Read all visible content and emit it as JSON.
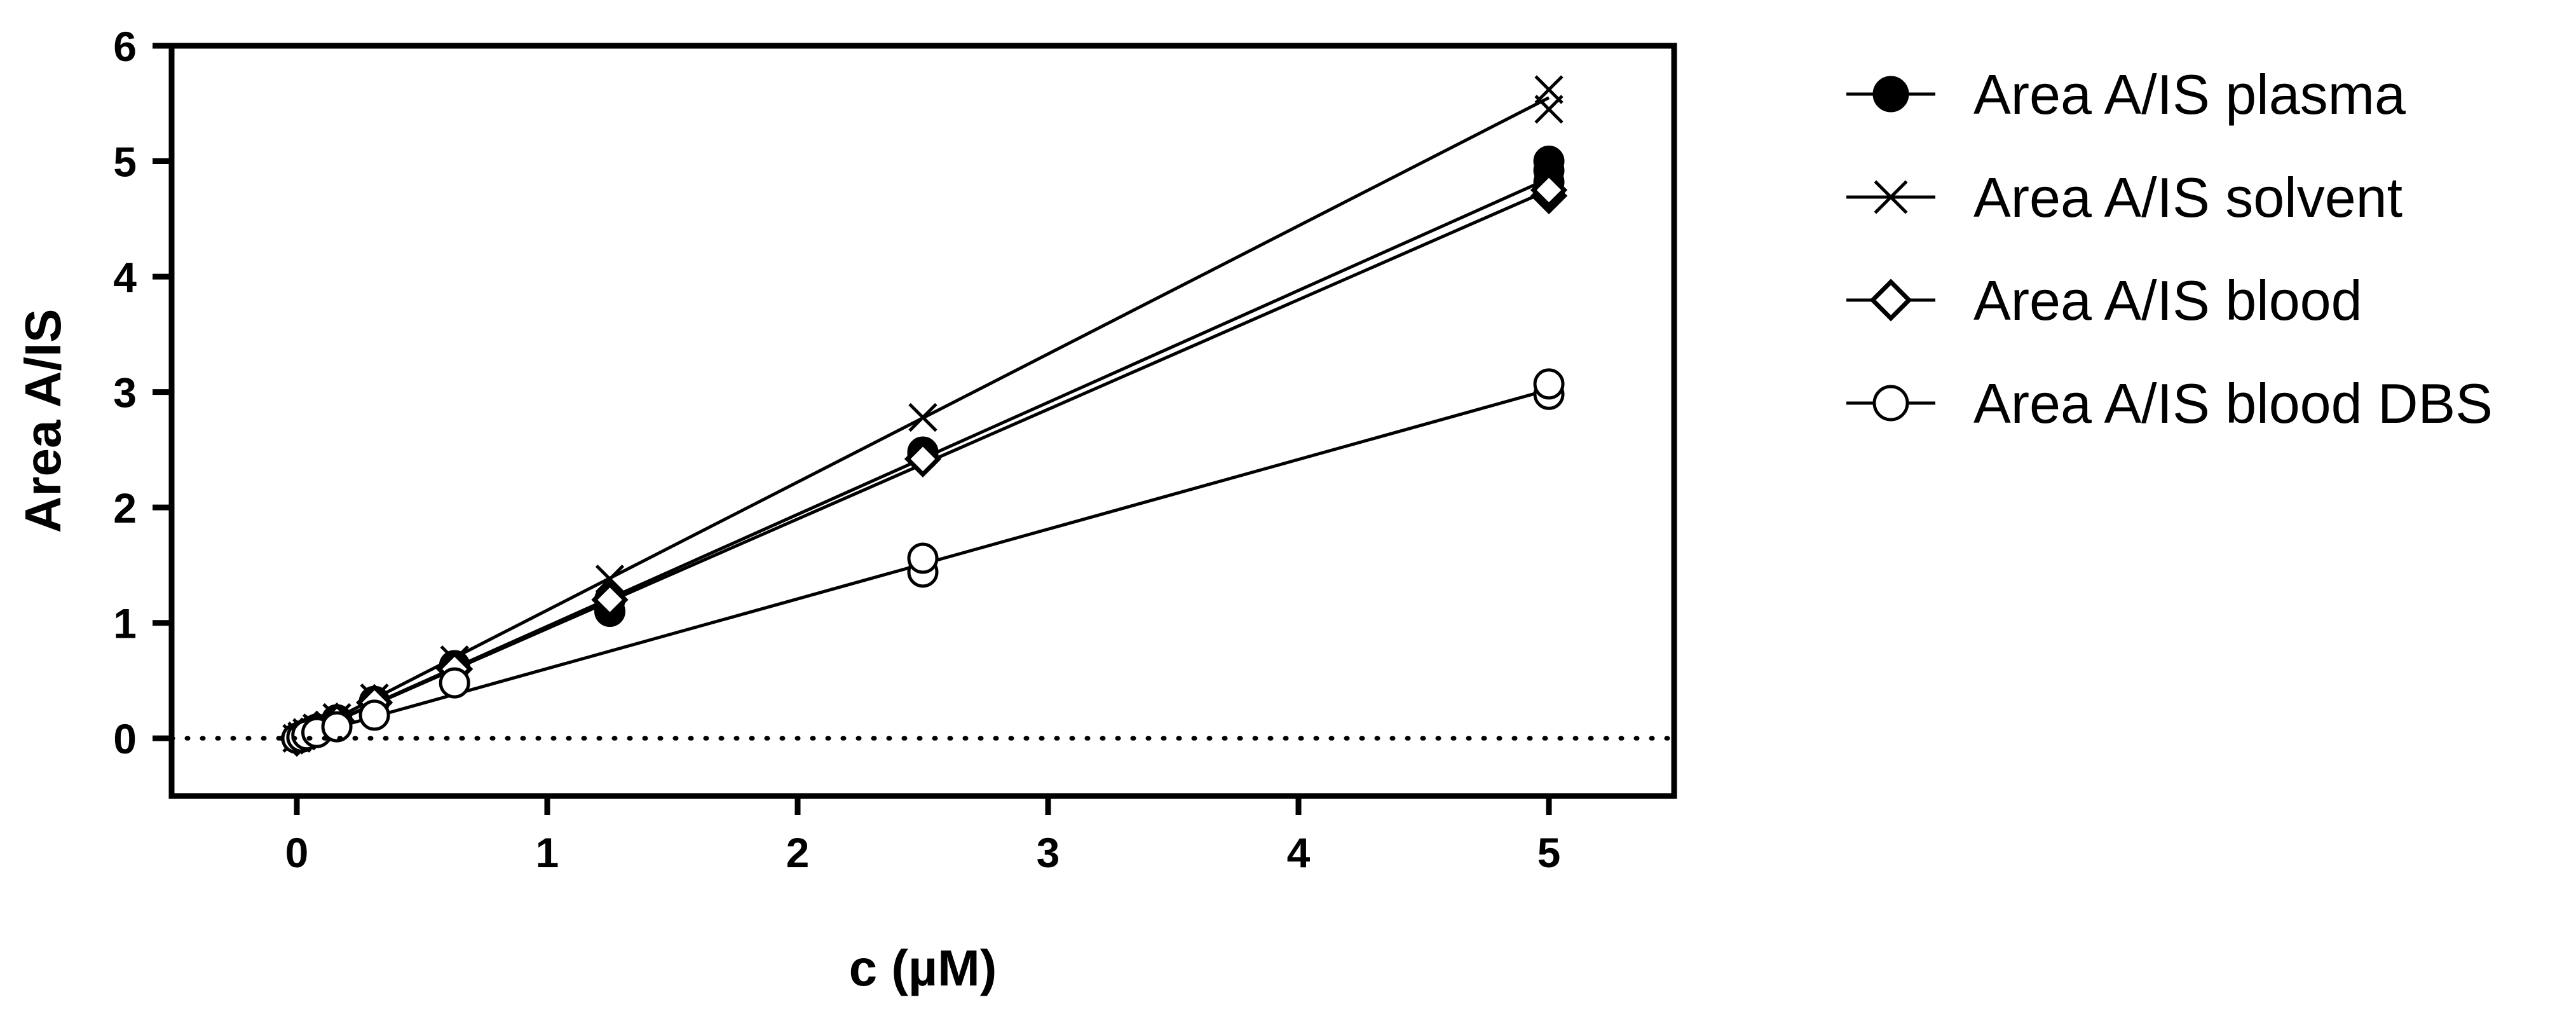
{
  "chart_data": {
    "type": "line",
    "xlabel": "c (µM)",
    "ylabel": "Area  A/IS",
    "xlim": [
      -0.5,
      5.5
    ],
    "ylim": [
      -0.5,
      6
    ],
    "x_ticks": [
      0,
      1,
      2,
      3,
      4,
      5
    ],
    "y_ticks": [
      0,
      1,
      2,
      3,
      4,
      5,
      6
    ],
    "x_tick_labels": [
      "0",
      "1",
      "2",
      "3",
      "4",
      "5"
    ],
    "y_tick_labels": [
      "0",
      "1",
      "2",
      "3",
      "4",
      "5",
      "6"
    ],
    "zero_reference_line": "dotted",
    "grid": false,
    "legend_position": "right",
    "series": [
      {
        "name": "Area A/IS plasma",
        "marker": "filled-circle",
        "points": [
          [
            0,
            0
          ],
          [
            0.02,
            0.02
          ],
          [
            0.04,
            0.04
          ],
          [
            0.08,
            0.08
          ],
          [
            0.16,
            0.16
          ],
          [
            0.31,
            0.32
          ],
          [
            0.63,
            0.63
          ],
          [
            1.25,
            1.1
          ],
          [
            1.25,
            1.2
          ],
          [
            2.5,
            2.45
          ],
          [
            2.5,
            2.48
          ],
          [
            5,
            4.82
          ],
          [
            5,
            4.92
          ],
          [
            5,
            5.0
          ]
        ],
        "fit": [
          [
            0,
            0
          ],
          [
            5,
            4.85
          ]
        ]
      },
      {
        "name": "Area A/IS solvent",
        "marker": "cross",
        "points": [
          [
            0,
            0
          ],
          [
            0.02,
            0.02
          ],
          [
            0.04,
            0.05
          ],
          [
            0.08,
            0.09
          ],
          [
            0.16,
            0.18
          ],
          [
            0.31,
            0.35
          ],
          [
            0.63,
            0.68
          ],
          [
            1.25,
            1.38
          ],
          [
            2.5,
            2.78
          ],
          [
            5,
            5.45
          ],
          [
            5,
            5.62
          ]
        ],
        "fit": [
          [
            0,
            0
          ],
          [
            5,
            5.55
          ]
        ]
      },
      {
        "name": "Area A/IS blood",
        "marker": "open-diamond",
        "points": [
          [
            0,
            0
          ],
          [
            0.02,
            0.02
          ],
          [
            0.04,
            0.04
          ],
          [
            0.08,
            0.08
          ],
          [
            0.16,
            0.15
          ],
          [
            0.31,
            0.31
          ],
          [
            0.63,
            0.6
          ],
          [
            1.25,
            1.2
          ],
          [
            2.5,
            2.42
          ],
          [
            5,
            4.7
          ],
          [
            5,
            4.75
          ]
        ],
        "fit": [
          [
            0,
            0
          ],
          [
            5,
            4.75
          ]
        ]
      },
      {
        "name": "Area A/IS blood DBS",
        "marker": "open-circle",
        "points": [
          [
            0,
            0
          ],
          [
            0.02,
            0.01
          ],
          [
            0.04,
            0.03
          ],
          [
            0.08,
            0.05
          ],
          [
            0.16,
            0.1
          ],
          [
            0.31,
            0.2
          ],
          [
            0.63,
            0.48
          ],
          [
            2.5,
            1.44
          ],
          [
            2.5,
            1.56
          ],
          [
            5,
            2.98
          ],
          [
            5,
            3.07
          ]
        ],
        "fit": [
          [
            0,
            0
          ],
          [
            5,
            3.02
          ]
        ]
      }
    ]
  }
}
